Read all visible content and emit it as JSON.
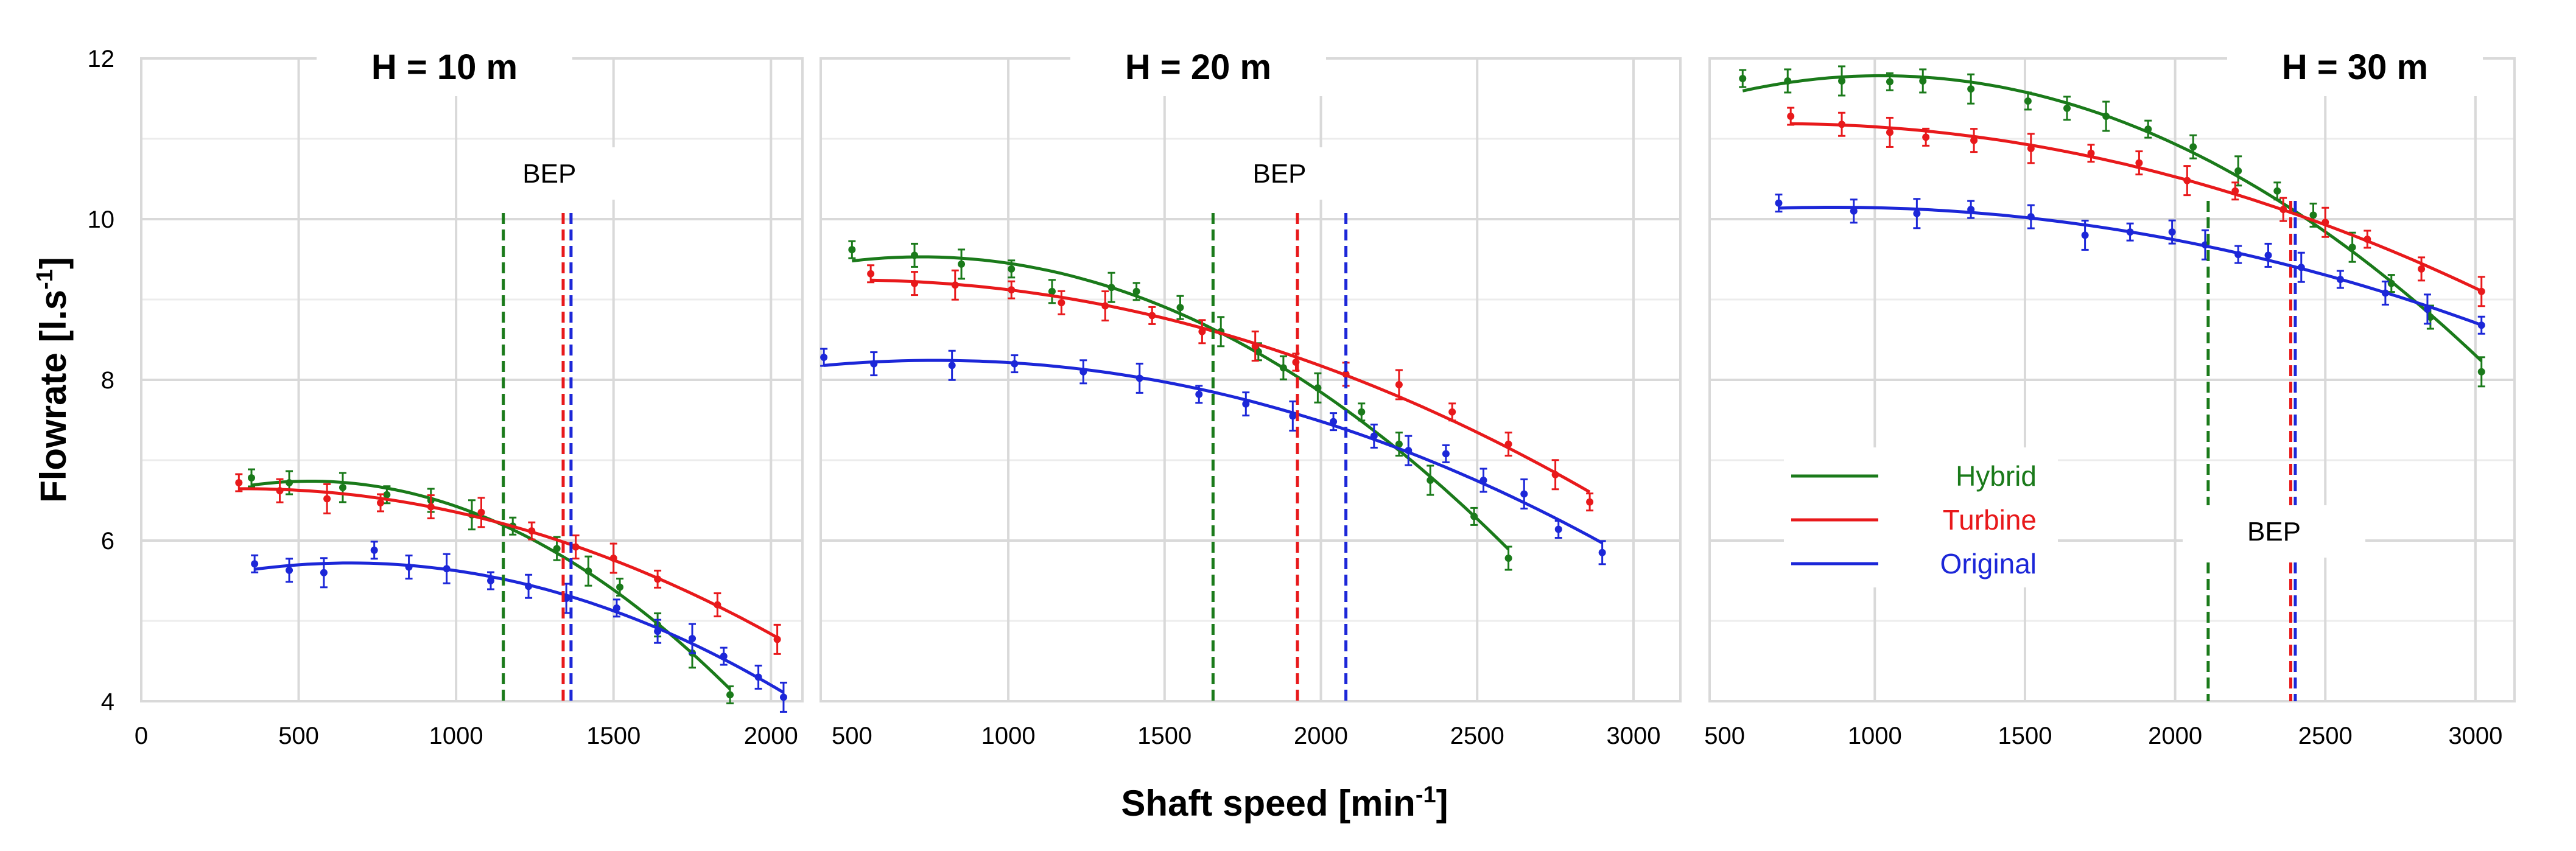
{
  "chart_data": {
    "type": "line",
    "ylabel": "Flowrate [l.s",
    "ylabel_sup": "-1",
    "ylabel_tail": "]",
    "xlabel": "Shaft speed [min",
    "xlabel_sup": "-1",
    "xlabel_tail": "]",
    "ylim": [
      4,
      12
    ],
    "y_ticks": [
      "4",
      "6",
      "8",
      "10",
      "12"
    ],
    "series_colors": {
      "Hybrid": "#1a7a1a",
      "Turbine": "#e8191b",
      "Original": "#1c27d8"
    },
    "legend": [
      {
        "name": "Hybrid",
        "color": "#1a7a1a"
      },
      {
        "name": "Turbine",
        "color": "#e8191b"
      },
      {
        "name": "Original",
        "color": "#1c27d8"
      }
    ],
    "bep_label": "BEP",
    "panels": [
      {
        "title": "H = 10 m",
        "xlim": [
          0,
          2100
        ],
        "x_ticks": [
          0,
          500,
          1000,
          1500,
          2000
        ],
        "bep": {
          "Hybrid": 1150,
          "Turbine": 1340,
          "Original": 1365
        },
        "series": [
          {
            "name": "Hybrid",
            "x": [
              350,
              470,
              640,
              780,
              920,
              1050,
              1180,
              1320,
              1420,
              1520,
              1640,
              1750,
              1870
            ],
            "y": [
              6.78,
              6.72,
              6.66,
              6.57,
              6.5,
              6.32,
              6.18,
              5.9,
              5.62,
              5.42,
              4.95,
              4.6,
              4.08
            ]
          },
          {
            "name": "Turbine",
            "x": [
              310,
              440,
              590,
              760,
              920,
              1080,
              1240,
              1380,
              1500,
              1640,
              1830,
              2020
            ],
            "y": [
              6.72,
              6.62,
              6.52,
              6.47,
              6.42,
              6.35,
              6.12,
              5.92,
              5.78,
              5.52,
              5.2,
              4.77
            ]
          },
          {
            "name": "Original",
            "x": [
              360,
              470,
              580,
              740,
              850,
              970,
              1110,
              1230,
              1350,
              1510,
              1640,
              1750,
              1850,
              1960,
              2040
            ],
            "y": [
              5.71,
              5.63,
              5.6,
              5.88,
              5.67,
              5.65,
              5.5,
              5.43,
              5.28,
              5.16,
              4.87,
              4.78,
              4.56,
              4.3,
              4.05
            ]
          }
        ]
      },
      {
        "title": "H = 20 m",
        "xlim": [
          400,
          3150
        ],
        "x_ticks": [
          500,
          1000,
          1500,
          2000,
          2500,
          3000
        ],
        "bep": {
          "Hybrid": 1655,
          "Turbine": 1925,
          "Original": 2080
        },
        "series": [
          {
            "name": "Hybrid",
            "x": [
              500,
              700,
              850,
              1010,
              1140,
              1330,
              1410,
              1550,
              1680,
              1800,
              1880,
              1990,
              2130,
              2250,
              2350,
              2490,
              2600
            ],
            "y": [
              9.62,
              9.55,
              9.44,
              9.38,
              9.1,
              9.15,
              9.1,
              8.9,
              8.6,
              8.35,
              8.15,
              7.9,
              7.6,
              7.2,
              6.75,
              6.3,
              5.78
            ]
          },
          {
            "name": "Turbine",
            "x": [
              560,
              700,
              830,
              1010,
              1170,
              1310,
              1460,
              1620,
              1790,
              1920,
              2080,
              2250,
              2420,
              2600,
              2750,
              2860
            ],
            "y": [
              9.32,
              9.2,
              9.18,
              9.12,
              8.96,
              8.92,
              8.8,
              8.6,
              8.42,
              8.22,
              8.07,
              7.94,
              7.6,
              7.2,
              6.82,
              6.48
            ]
          },
          {
            "name": "Original",
            "x": [
              410,
              570,
              820,
              1020,
              1240,
              1420,
              1610,
              1760,
              1910,
              2040,
              2170,
              2280,
              2400,
              2520,
              2650,
              2760,
              2900
            ],
            "y": [
              8.28,
              8.2,
              8.18,
              8.2,
              8.1,
              8.02,
              7.82,
              7.7,
              7.55,
              7.48,
              7.3,
              7.12,
              7.08,
              6.75,
              6.58,
              6.14,
              5.85
            ]
          }
        ]
      },
      {
        "title": "H = 30 m",
        "xlim": [
          450,
          3130
        ],
        "x_ticks": [
          500,
          1000,
          1500,
          2000,
          2500,
          3000
        ],
        "bep": {
          "Hybrid": 2110,
          "Turbine": 2385,
          "Original": 2400
        },
        "series": [
          {
            "name": "Hybrid",
            "x": [
              560,
              710,
              890,
              1050,
              1160,
              1320,
              1510,
              1640,
              1770,
              1910,
              2060,
              2210,
              2340,
              2460,
              2590,
              2720,
              2850,
              3020
            ],
            "y": [
              11.75,
              11.72,
              11.72,
              11.71,
              11.72,
              11.62,
              11.47,
              11.38,
              11.28,
              11.12,
              10.9,
              10.6,
              10.35,
              10.05,
              9.65,
              9.2,
              8.78,
              8.1
            ]
          },
          {
            "name": "Turbine",
            "x": [
              720,
              890,
              1050,
              1170,
              1330,
              1520,
              1720,
              1880,
              2040,
              2200,
              2360,
              2500,
              2640,
              2820,
              3020
            ],
            "y": [
              11.28,
              11.18,
              11.08,
              11.02,
              10.98,
              10.88,
              10.82,
              10.7,
              10.48,
              10.35,
              10.12,
              9.96,
              9.75,
              9.38,
              9.1
            ]
          },
          {
            "name": "Original",
            "x": [
              680,
              930,
              1140,
              1320,
              1520,
              1700,
              1850,
              1990,
              2100,
              2210,
              2310,
              2420,
              2550,
              2700,
              2840,
              3020
            ],
            "y": [
              10.2,
              10.1,
              10.07,
              10.12,
              10.03,
              9.8,
              9.84,
              9.84,
              9.68,
              9.56,
              9.55,
              9.4,
              9.25,
              9.08,
              8.88,
              8.68
            ]
          }
        ]
      }
    ]
  }
}
